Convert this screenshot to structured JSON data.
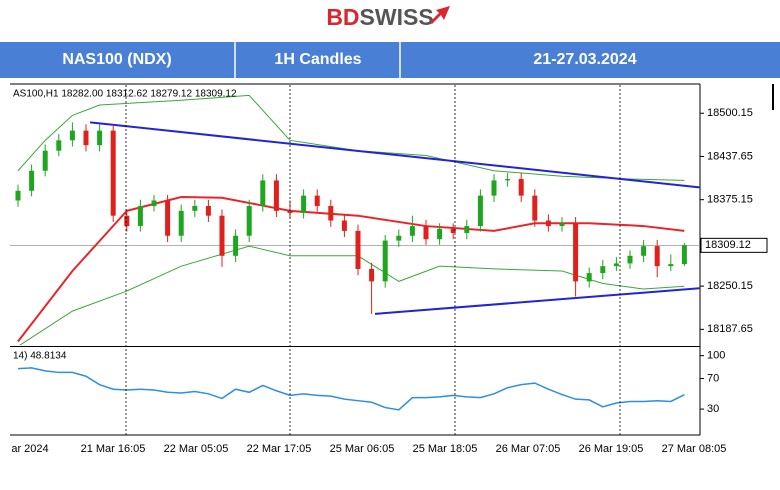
{
  "logo_a": "BD",
  "logo_b": "SWISS",
  "header": {
    "symbol": "NAS100 (NDX)",
    "timeframe": "1H Candles",
    "dates": "21-27.03.2024"
  },
  "chart_data": {
    "type": "candlestick",
    "info_text": "AS100,H1  18282.00  18312.62  18279.12  18309.12",
    "up_color": "#1fa61f",
    "down_color": "#e0201a",
    "open": [
      18374,
      18388,
      18417,
      18446,
      18461,
      18475,
      18454,
      18475,
      18352,
      18337,
      18366,
      18374,
      18323,
      18359,
      18366,
      18352,
      18294,
      18323,
      18366,
      18403,
      18359,
      18356,
      18381,
      18366,
      18345,
      18330,
      18275,
      18257,
      18316,
      18323,
      18337,
      18318,
      18333,
      18327,
      18337,
      18381,
      18403,
      18405,
      18381,
      18345,
      18337,
      18341,
      18257,
      18269,
      18279,
      18283,
      18294,
      18308,
      18279,
      18282
    ],
    "high": [
      18397,
      18426,
      18455,
      18470,
      18487,
      18484,
      18484,
      18484,
      18361,
      18375,
      18382,
      18382,
      18368,
      18375,
      18375,
      18361,
      18332,
      18375,
      18412,
      18412,
      18374,
      18390,
      18390,
      18375,
      18354,
      18339,
      18284,
      18324,
      18332,
      18352,
      18346,
      18341,
      18341,
      18346,
      18390,
      18412,
      18414,
      18414,
      18390,
      18354,
      18350,
      18350,
      18277,
      18288,
      18292,
      18302,
      18317,
      18317,
      18296,
      18312.62
    ],
    "low": [
      18365,
      18380,
      18409,
      18438,
      18452,
      18445,
      18445,
      18343,
      18329,
      18329,
      18358,
      18314,
      18314,
      18350,
      18343,
      18278,
      18285,
      18314,
      18358,
      18350,
      18348,
      18348,
      18358,
      18336,
      18321,
      18266,
      18210,
      18248,
      18307,
      18314,
      18310,
      18310,
      18318,
      18318,
      18329,
      18372,
      18394,
      18372,
      18336,
      18329,
      18329,
      18235,
      18248,
      18260,
      18272,
      18275,
      18285,
      18263,
      18272,
      18279.12
    ],
    "close": [
      18388,
      18417,
      18446,
      18461,
      18475,
      18454,
      18475,
      18352,
      18337,
      18366,
      18374,
      18323,
      18359,
      18366,
      18352,
      18294,
      18323,
      18366,
      18403,
      18359,
      18356,
      18381,
      18366,
      18345,
      18330,
      18275,
      18257,
      18316,
      18323,
      18337,
      18318,
      18333,
      18327,
      18337,
      18381,
      18403,
      18405,
      18381,
      18345,
      18337,
      18341,
      18257,
      18269,
      18279,
      18283,
      18294,
      18308,
      18279,
      18282,
      18309.12
    ],
    "lines": [
      {
        "color": "#3aa83a",
        "x": [
          0,
          2,
          4,
          6,
          12,
          17,
          20,
          25,
          30,
          35,
          40,
          45,
          49
        ],
        "values": [
          18417,
          18461,
          18497,
          18512,
          18519,
          18526,
          18461,
          18446,
          18439,
          18417,
          18409,
          18405,
          18403
        ]
      },
      {
        "color": "#3aa83a",
        "x": [
          0,
          4,
          8,
          12,
          17,
          20,
          25,
          28,
          31,
          35,
          40,
          43,
          46,
          49
        ],
        "values": [
          18163,
          18214,
          18243,
          18279,
          18308,
          18294,
          18294,
          18257,
          18279,
          18275,
          18272,
          18254,
          18246,
          18250
        ]
      },
      {
        "color": "#e8262a",
        "x": [
          0,
          4,
          8,
          12,
          15,
          20,
          25,
          30,
          35,
          38,
          42,
          46,
          49
        ],
        "values": [
          18170,
          18272,
          18359,
          18379,
          18378,
          18359,
          18352,
          18337,
          18330,
          18341,
          18341,
          18337,
          18330
        ]
      },
      {
        "color": "#2323d8",
        "x": [
          5.3,
          50.1
        ],
        "values": [
          18487,
          18393
        ]
      },
      {
        "color": "#2323d8",
        "x": [
          26.25,
          50.1
        ],
        "values": [
          18210,
          18247
        ]
      }
    ],
    "ylim": [
      18165,
      18541
    ],
    "yticks": [
      18500.15,
      18437.65,
      18375.15,
      18250.15,
      18187.65
    ],
    "x_labels": [
      "ar 2024",
      "21 Mar 16:05",
      "22 Mar 05:05",
      "22 Mar 17:05",
      "25 Mar 06:05",
      "25 Mar 18:05",
      "26 Mar 07:05",
      "26 Mar 19:05",
      "27 Mar 08:05"
    ],
    "rsi": {
      "label": "14) 48.8134",
      "color": "#2e8ee0",
      "values": [
        83,
        84,
        80,
        78,
        78,
        73,
        62,
        56,
        55,
        56,
        55,
        52,
        51,
        53,
        50,
        44,
        56,
        52,
        61,
        54,
        48,
        50,
        48,
        47,
        43,
        41,
        39,
        32,
        29,
        45,
        45,
        46,
        48,
        46,
        45,
        50,
        58,
        62,
        64,
        56,
        49,
        43,
        42,
        33,
        38,
        40,
        40,
        41,
        40,
        48.8134
      ],
      "ylim": [
        0,
        110
      ],
      "yticks": [
        100,
        70,
        30
      ]
    }
  }
}
